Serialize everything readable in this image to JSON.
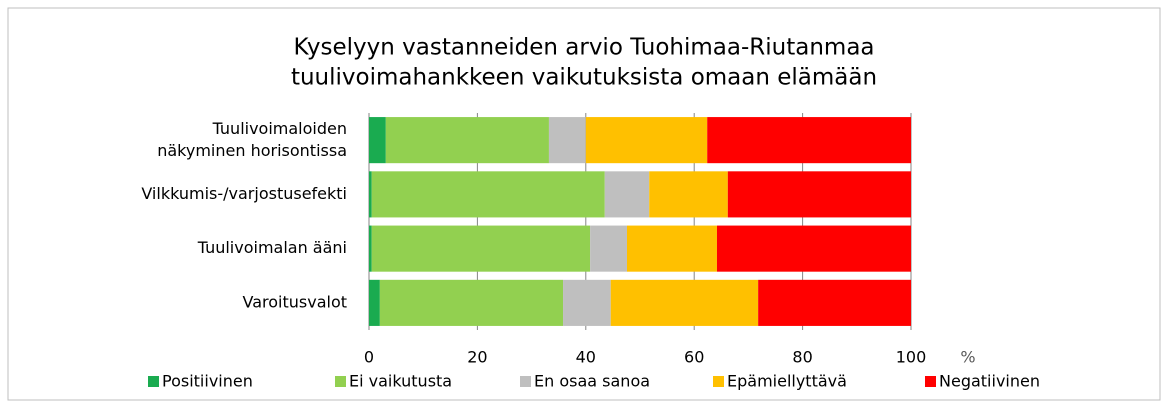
{
  "chart_data": {
    "type": "stacked_barh",
    "title": [
      "Kyselyyn vastanneiden arvio Tuohimaa-Riutanmaa",
      "tuulivoimahankkeen vaikutuksista omaan elämään"
    ],
    "categories": [
      "Tuulivoimaloiden\nnäkyminen horisontissa",
      "Vilkkumis-/varjostusefekti",
      "Tuulivoimalan ääni",
      "Varoitusvalot"
    ],
    "series": [
      {
        "name": "Positiivinen",
        "color": "#1aab50",
        "values": [
          3.1,
          0.5,
          0.5,
          2.0
        ]
      },
      {
        "name": "Ei vaikutusta",
        "color": "#92d050",
        "values": [
          30.1,
          43.0,
          40.3,
          33.8
        ]
      },
      {
        "name": "En osaa sanoa",
        "color": "#bfbfbf",
        "values": [
          6.8,
          8.2,
          6.8,
          8.8
        ]
      },
      {
        "name": "Epämiellyttävä",
        "color": "#ffc000",
        "values": [
          22.4,
          14.5,
          16.6,
          27.2
        ]
      },
      {
        "name": "Negatiivinen",
        "color": "#ff0000",
        "values": [
          37.6,
          33.8,
          35.8,
          28.2
        ]
      }
    ],
    "x_label": "%",
    "xlim": [
      0,
      100
    ],
    "xticks": [
      0,
      20,
      40,
      60,
      80,
      100
    ],
    "grid": true,
    "legend": "bottom"
  }
}
